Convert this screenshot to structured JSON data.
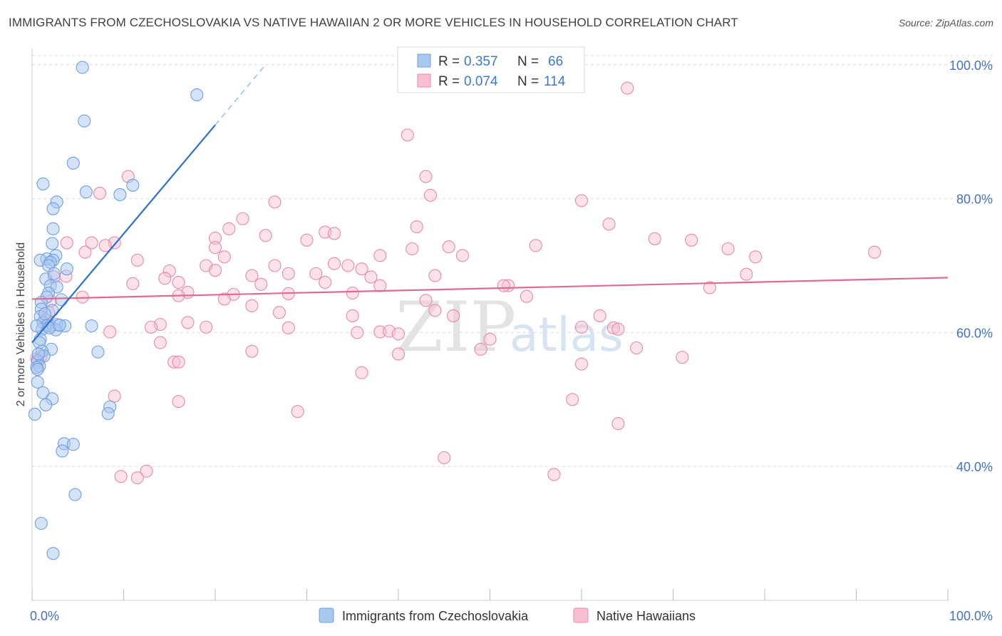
{
  "title": "IMMIGRANTS FROM CZECHOSLOVAKIA VS NATIVE HAWAIIAN 2 OR MORE VEHICLES IN HOUSEHOLD CORRELATION CHART",
  "source": "Source: ZipAtlas.com",
  "watermark": {
    "zip": "ZIP",
    "atlas": "atlas"
  },
  "legend": {
    "rows": [
      {
        "r_label": "R =",
        "r_value": "0.357",
        "n_label": "N =",
        "n_value": "66"
      },
      {
        "r_label": "R =",
        "r_value": "0.074",
        "n_label": "N =",
        "n_value": "114"
      }
    ]
  },
  "colors": {
    "blue_fill": "#a9c8f0",
    "blue_stroke": "#6f9fe0",
    "blue_line": "#2b6fd0",
    "pink_fill": "#f7bfd1",
    "pink_stroke": "#e889aa",
    "pink_line": "#e06a93",
    "grid": "#dcdcdc",
    "axis_label": "#4472c4"
  },
  "chart_data": {
    "type": "scatter",
    "title": "IMMIGRANTS FROM CZECHOSLOVAKIA VS NATIVE HAWAIIAN 2 OR MORE VEHICLES IN HOUSEHOLD CORRELATION CHART",
    "xlabel": "",
    "ylabel": "2 or more Vehicles in Household",
    "xlim": [
      0,
      100
    ],
    "ylim": [
      20,
      102
    ],
    "x_tick_labels": [
      "0.0%",
      "100.0%"
    ],
    "y_ticks": [
      40,
      60,
      80,
      100
    ],
    "y_tick_labels": [
      "40.0%",
      "60.0%",
      "80.0%",
      "100.0%"
    ],
    "grid": true,
    "legend_position": "bottom",
    "series": [
      {
        "name": "Immigrants from Czechoslovakia",
        "color": "#a9c8f0",
        "trend": {
          "x": [
            0,
            20
          ],
          "y": [
            58.5,
            91
          ]
        },
        "trend_ext": {
          "x": [
            20,
            25.5
          ],
          "y": [
            91,
            100
          ]
        },
        "points": [
          [
            5.5,
            99.6
          ],
          [
            18,
            95.5
          ],
          [
            5.7,
            91.6
          ],
          [
            4.5,
            85.3
          ],
          [
            1.2,
            82.2
          ],
          [
            5.9,
            81.0
          ],
          [
            9.6,
            80.6
          ],
          [
            11,
            82.0
          ],
          [
            2.7,
            79.5
          ],
          [
            2.3,
            78.5
          ],
          [
            2.3,
            75.5
          ],
          [
            2.2,
            73.3
          ],
          [
            2.6,
            71.5
          ],
          [
            1.6,
            71.0
          ],
          [
            0.9,
            70.8
          ],
          [
            2.3,
            70.8
          ],
          [
            2.0,
            70.5
          ],
          [
            1.8,
            70.0
          ],
          [
            3.8,
            69.5
          ],
          [
            1.5,
            68.0
          ],
          [
            2.0,
            67.0
          ],
          [
            2.7,
            66.8
          ],
          [
            1.8,
            65.9
          ],
          [
            1.6,
            65.3
          ],
          [
            1.0,
            64.5
          ],
          [
            3.2,
            64.9
          ],
          [
            1.0,
            63.5
          ],
          [
            2.2,
            63.3
          ],
          [
            0.9,
            62.4
          ],
          [
            1.2,
            61.5
          ],
          [
            1.6,
            61.0
          ],
          [
            2.0,
            61.0
          ],
          [
            2.7,
            61.2
          ],
          [
            3.6,
            61.0
          ],
          [
            6.5,
            61.0
          ],
          [
            2.6,
            60.4
          ],
          [
            1.1,
            60.5
          ],
          [
            0.9,
            59.0
          ],
          [
            0.8,
            58.5
          ],
          [
            2.1,
            57.5
          ],
          [
            1.1,
            57.2
          ],
          [
            7.2,
            57.1
          ],
          [
            1.3,
            56.5
          ],
          [
            0.6,
            55.8
          ],
          [
            0.8,
            55.0
          ],
          [
            0.5,
            54.8
          ],
          [
            0.6,
            54.5
          ],
          [
            0.6,
            52.6
          ],
          [
            1.2,
            51.0
          ],
          [
            2.2,
            50.1
          ],
          [
            1.5,
            49.2
          ],
          [
            8.5,
            48.9
          ],
          [
            8.3,
            47.9
          ],
          [
            0.3,
            47.8
          ],
          [
            3.5,
            43.4
          ],
          [
            4.5,
            43.3
          ],
          [
            3.3,
            42.3
          ],
          [
            4.7,
            35.8
          ],
          [
            1.0,
            31.5
          ],
          [
            2.3,
            27.0
          ],
          [
            0.5,
            61.0
          ],
          [
            1.4,
            62.8
          ],
          [
            2.4,
            68.8
          ],
          [
            0.7,
            56.8
          ],
          [
            1.9,
            60.7
          ],
          [
            3.0,
            61.1
          ]
        ]
      },
      {
        "name": "Native Hawaiians",
        "color": "#f7bfd1",
        "trend": {
          "x": [
            0,
            100
          ],
          "y": [
            65.0,
            68.2
          ]
        },
        "points": [
          [
            65,
            96.5
          ],
          [
            41,
            89.5
          ],
          [
            10.5,
            83.3
          ],
          [
            43,
            83.3
          ],
          [
            7.4,
            80.8
          ],
          [
            43.5,
            80.5
          ],
          [
            60,
            79.7
          ],
          [
            26.5,
            79.5
          ],
          [
            23,
            77.0
          ],
          [
            42,
            75.8
          ],
          [
            63,
            76.2
          ],
          [
            21.5,
            75.5
          ],
          [
            32,
            75.0
          ],
          [
            33,
            74.8
          ],
          [
            25.5,
            74.5
          ],
          [
            20,
            74.1
          ],
          [
            68,
            74.0
          ],
          [
            72,
            73.8
          ],
          [
            30,
            73.8
          ],
          [
            3.8,
            73.4
          ],
          [
            6.5,
            73.4
          ],
          [
            9,
            73.4
          ],
          [
            8,
            73.0
          ],
          [
            55,
            73.0
          ],
          [
            20,
            72.7
          ],
          [
            45.5,
            72.8
          ],
          [
            41.5,
            72.5
          ],
          [
            76,
            72.5
          ],
          [
            92,
            72.0
          ],
          [
            5.8,
            72.0
          ],
          [
            38,
            71.5
          ],
          [
            47,
            71.5
          ],
          [
            79,
            71.3
          ],
          [
            21,
            71.3
          ],
          [
            11.5,
            70.8
          ],
          [
            33,
            70.3
          ],
          [
            26.5,
            70.0
          ],
          [
            34.5,
            70.0
          ],
          [
            19,
            70.0
          ],
          [
            36,
            69.5
          ],
          [
            15,
            69.2
          ],
          [
            20,
            69.3
          ],
          [
            28,
            68.8
          ],
          [
            31,
            68.8
          ],
          [
            3.7,
            68.4
          ],
          [
            24,
            68.5
          ],
          [
            44,
            68.5
          ],
          [
            2.4,
            68.3
          ],
          [
            37,
            68.3
          ],
          [
            78,
            68.7
          ],
          [
            14.5,
            68.1
          ],
          [
            16,
            67.5
          ],
          [
            32,
            67.5
          ],
          [
            11,
            67.3
          ],
          [
            25,
            67.2
          ],
          [
            38,
            67.0
          ],
          [
            52,
            67.0
          ],
          [
            51.5,
            67.0
          ],
          [
            74,
            66.7
          ],
          [
            17,
            66.0
          ],
          [
            22,
            65.7
          ],
          [
            28,
            65.8
          ],
          [
            35,
            65.9
          ],
          [
            16,
            65.5
          ],
          [
            5.5,
            65.3
          ],
          [
            21,
            65.0
          ],
          [
            43,
            64.8
          ],
          [
            54,
            65.4
          ],
          [
            2.0,
            64.7
          ],
          [
            24,
            64.0
          ],
          [
            44,
            63.3
          ],
          [
            27,
            63.0
          ],
          [
            62,
            62.5
          ],
          [
            35,
            62.5
          ],
          [
            46,
            62.5
          ],
          [
            1.5,
            61.8
          ],
          [
            17,
            61.5
          ],
          [
            14,
            61.2
          ],
          [
            13,
            60.8
          ],
          [
            19,
            60.8
          ],
          [
            28,
            60.7
          ],
          [
            60,
            60.8
          ],
          [
            63.5,
            60.7
          ],
          [
            38,
            60.1
          ],
          [
            39,
            60.2
          ],
          [
            8.5,
            60.1
          ],
          [
            35.5,
            60.0
          ],
          [
            64,
            60.5
          ],
          [
            40,
            59.8
          ],
          [
            50,
            59.0
          ],
          [
            14,
            58.5
          ],
          [
            66,
            57.7
          ],
          [
            49,
            57.5
          ],
          [
            24,
            57.2
          ],
          [
            40,
            56.8
          ],
          [
            71,
            56.3
          ],
          [
            0.5,
            56.1
          ],
          [
            15.5,
            55.6
          ],
          [
            16,
            55.6
          ],
          [
            60,
            55.3
          ],
          [
            36,
            54.0
          ],
          [
            9,
            50.5
          ],
          [
            59,
            50.0
          ],
          [
            16,
            49.7
          ],
          [
            29,
            48.2
          ],
          [
            64,
            46.4
          ],
          [
            45,
            41.3
          ],
          [
            12.5,
            39.3
          ],
          [
            9.7,
            38.5
          ],
          [
            11.5,
            38.3
          ],
          [
            57,
            38.8
          ],
          [
            1.0,
            56.5
          ],
          [
            1.8,
            63.0
          ],
          [
            0.6,
            55.5
          ]
        ]
      }
    ]
  }
}
